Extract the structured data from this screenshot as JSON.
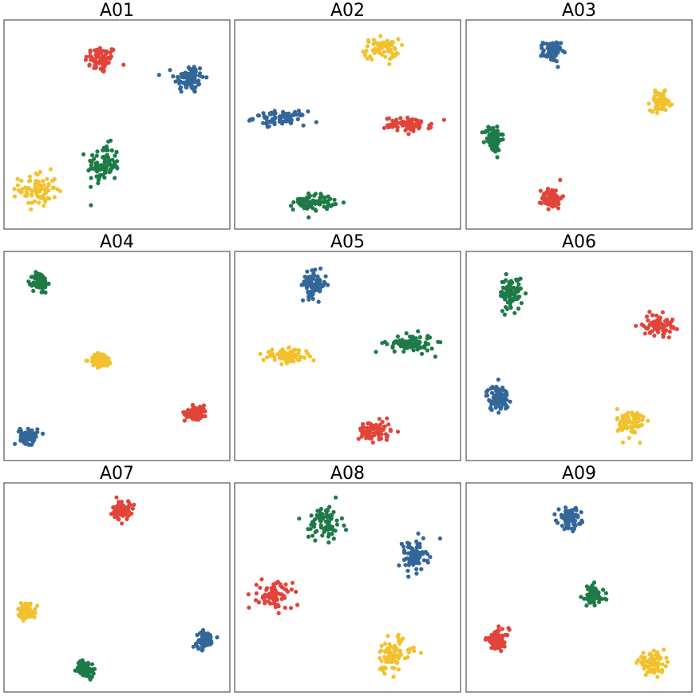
{
  "colors": {
    "blue": "#336699",
    "red": "#e2443a",
    "yellow": "#f2c12e",
    "green": "#1e7a46"
  },
  "chart_data": [
    {
      "type": "scatter",
      "title": "A01",
      "grid": false,
      "xlim": [
        0,
        10
      ],
      "ylim": [
        0,
        10
      ],
      "clusters": [
        {
          "color": "red",
          "cx": 4.3,
          "cy": 8.1,
          "sx": 0.65,
          "sy": 0.6,
          "n": 70
        },
        {
          "color": "blue",
          "cx": 8.2,
          "cy": 7.2,
          "sx": 0.6,
          "sy": 0.65,
          "n": 80
        },
        {
          "color": "green",
          "cx": 4.4,
          "cy": 3.1,
          "sx": 0.65,
          "sy": 0.85,
          "n": 90
        },
        {
          "color": "yellow",
          "cx": 1.5,
          "cy": 1.9,
          "sx": 0.75,
          "sy": 0.75,
          "n": 80
        }
      ]
    },
    {
      "type": "scatter",
      "title": "A02",
      "grid": false,
      "xlim": [
        0,
        10
      ],
      "ylim": [
        0,
        10
      ],
      "clusters": [
        {
          "color": "yellow",
          "cx": 6.5,
          "cy": 8.6,
          "sx": 0.7,
          "sy": 0.45,
          "n": 70
        },
        {
          "color": "blue",
          "cx": 2.0,
          "cy": 5.3,
          "sx": 1.05,
          "sy": 0.3,
          "n": 80
        },
        {
          "color": "red",
          "cx": 7.7,
          "cy": 5.0,
          "sx": 0.95,
          "sy": 0.3,
          "n": 80
        },
        {
          "color": "green",
          "cx": 3.5,
          "cy": 1.3,
          "sx": 0.8,
          "sy": 0.35,
          "n": 80
        }
      ]
    },
    {
      "type": "scatter",
      "title": "A03",
      "grid": false,
      "xlim": [
        0,
        10
      ],
      "ylim": [
        0,
        10
      ],
      "clusters": [
        {
          "color": "blue",
          "cx": 3.8,
          "cy": 8.5,
          "sx": 0.35,
          "sy": 0.45,
          "n": 80
        },
        {
          "color": "yellow",
          "cx": 8.6,
          "cy": 6.1,
          "sx": 0.4,
          "sy": 0.4,
          "n": 80
        },
        {
          "color": "green",
          "cx": 1.2,
          "cy": 4.3,
          "sx": 0.35,
          "sy": 0.6,
          "n": 80
        },
        {
          "color": "red",
          "cx": 3.8,
          "cy": 1.5,
          "sx": 0.4,
          "sy": 0.45,
          "n": 80
        }
      ]
    },
    {
      "type": "scatter",
      "title": "A04",
      "grid": false,
      "xlim": [
        0,
        10
      ],
      "ylim": [
        0,
        10
      ],
      "clusters": [
        {
          "color": "green",
          "cx": 1.6,
          "cy": 8.5,
          "sx": 0.3,
          "sy": 0.45,
          "n": 80
        },
        {
          "color": "yellow",
          "cx": 4.3,
          "cy": 4.8,
          "sx": 0.45,
          "sy": 0.3,
          "n": 80
        },
        {
          "color": "red",
          "cx": 8.5,
          "cy": 2.3,
          "sx": 0.45,
          "sy": 0.3,
          "n": 80
        },
        {
          "color": "blue",
          "cx": 1.1,
          "cy": 1.2,
          "sx": 0.35,
          "sy": 0.35,
          "n": 80
        }
      ]
    },
    {
      "type": "scatter",
      "title": "A05",
      "grid": false,
      "xlim": [
        0,
        10
      ],
      "ylim": [
        0,
        10
      ],
      "clusters": [
        {
          "color": "blue",
          "cx": 3.5,
          "cy": 8.4,
          "sx": 0.5,
          "sy": 0.55,
          "n": 80
        },
        {
          "color": "yellow",
          "cx": 2.3,
          "cy": 5.0,
          "sx": 0.95,
          "sy": 0.3,
          "n": 80
        },
        {
          "color": "green",
          "cx": 7.8,
          "cy": 5.6,
          "sx": 0.95,
          "sy": 0.4,
          "n": 80
        },
        {
          "color": "red",
          "cx": 6.2,
          "cy": 1.4,
          "sx": 0.65,
          "sy": 0.45,
          "n": 80
        }
      ]
    },
    {
      "type": "scatter",
      "title": "A06",
      "grid": false,
      "xlim": [
        0,
        10
      ],
      "ylim": [
        0,
        10
      ],
      "clusters": [
        {
          "color": "green",
          "cx": 2.0,
          "cy": 8.0,
          "sx": 0.45,
          "sy": 0.7,
          "n": 80
        },
        {
          "color": "red",
          "cx": 8.5,
          "cy": 6.5,
          "sx": 0.6,
          "sy": 0.45,
          "n": 80
        },
        {
          "color": "blue",
          "cx": 1.4,
          "cy": 3.0,
          "sx": 0.45,
          "sy": 0.55,
          "n": 80
        },
        {
          "color": "yellow",
          "cx": 7.3,
          "cy": 1.8,
          "sx": 0.55,
          "sy": 0.65,
          "n": 80
        }
      ]
    },
    {
      "type": "scatter",
      "title": "A07",
      "grid": false,
      "xlim": [
        0,
        10
      ],
      "ylim": [
        0,
        10
      ],
      "clusters": [
        {
          "color": "red",
          "cx": 5.2,
          "cy": 8.7,
          "sx": 0.35,
          "sy": 0.4,
          "n": 80
        },
        {
          "color": "yellow",
          "cx": 1.0,
          "cy": 3.9,
          "sx": 0.35,
          "sy": 0.35,
          "n": 80
        },
        {
          "color": "blue",
          "cx": 8.9,
          "cy": 2.5,
          "sx": 0.35,
          "sy": 0.35,
          "n": 80
        },
        {
          "color": "green",
          "cx": 3.6,
          "cy": 1.1,
          "sx": 0.35,
          "sy": 0.35,
          "n": 80
        }
      ]
    },
    {
      "type": "scatter",
      "title": "A08",
      "grid": false,
      "xlim": [
        0,
        10
      ],
      "ylim": [
        0,
        10
      ],
      "clusters": [
        {
          "color": "green",
          "cx": 4.0,
          "cy": 8.1,
          "sx": 0.65,
          "sy": 0.75,
          "n": 80
        },
        {
          "color": "blue",
          "cx": 7.9,
          "cy": 6.5,
          "sx": 0.6,
          "sy": 0.7,
          "n": 80
        },
        {
          "color": "red",
          "cx": 1.8,
          "cy": 4.6,
          "sx": 0.7,
          "sy": 0.6,
          "n": 80
        },
        {
          "color": "yellow",
          "cx": 7.0,
          "cy": 1.8,
          "sx": 0.75,
          "sy": 0.8,
          "n": 80
        }
      ]
    },
    {
      "type": "scatter",
      "title": "A09",
      "grid": false,
      "xlim": [
        0,
        10
      ],
      "ylim": [
        0,
        10
      ],
      "clusters": [
        {
          "color": "blue",
          "cx": 4.6,
          "cy": 8.3,
          "sx": 0.45,
          "sy": 0.45,
          "n": 80
        },
        {
          "color": "green",
          "cx": 5.6,
          "cy": 4.6,
          "sx": 0.45,
          "sy": 0.45,
          "n": 80
        },
        {
          "color": "red",
          "cx": 1.4,
          "cy": 2.5,
          "sx": 0.45,
          "sy": 0.45,
          "n": 80
        },
        {
          "color": "yellow",
          "cx": 8.2,
          "cy": 1.4,
          "sx": 0.55,
          "sy": 0.4,
          "n": 80
        }
      ]
    }
  ]
}
